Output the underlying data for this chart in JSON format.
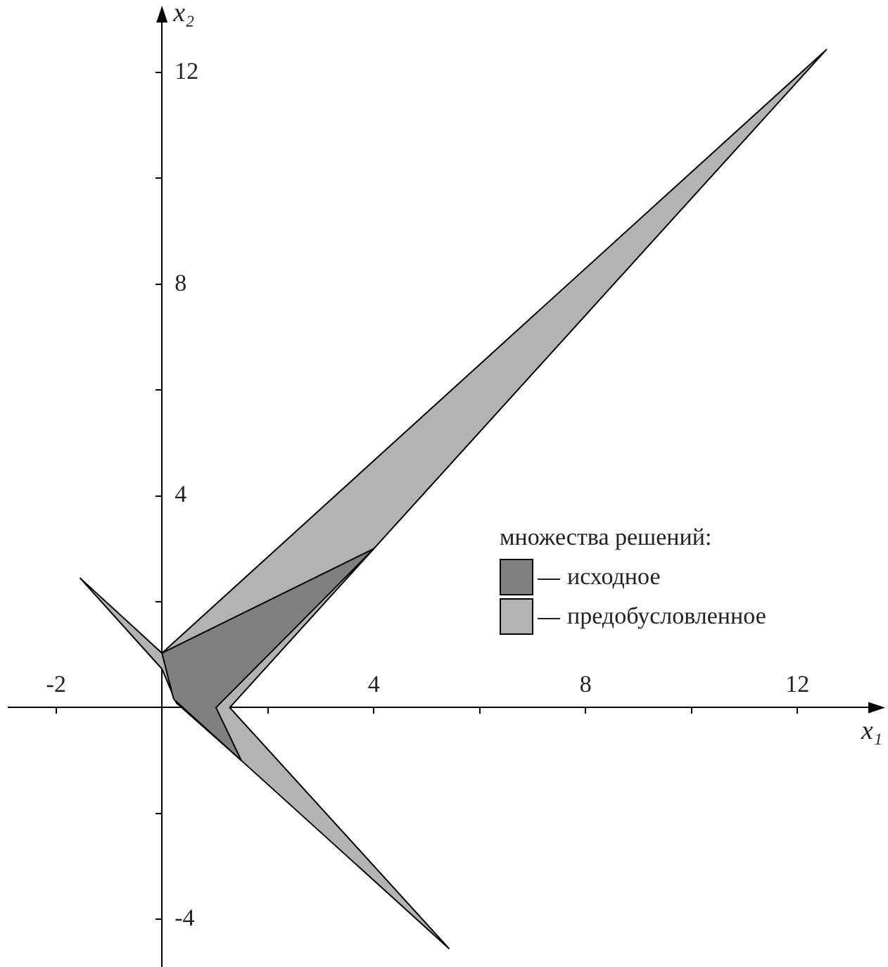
{
  "chart_data": {
    "type": "area",
    "xlabel": "x₁",
    "ylabel": "x₂",
    "legend_title": "множества решений:",
    "legend": "right",
    "grid": false,
    "xlim": [
      -2.9,
      13.5
    ],
    "ylim": [
      -4.9,
      13.1
    ],
    "xticks": [
      -2,
      {
        "value": 2,
        "label": null
      },
      4,
      {
        "value": 6,
        "label": null
      },
      8,
      {
        "value": 10,
        "label": null
      },
      12
    ],
    "yticks": [
      -4,
      {
        "value": -2,
        "label": null
      },
      {
        "value": 2,
        "label": null
      },
      4,
      {
        "value": 6,
        "label": null
      },
      8,
      {
        "value": 10,
        "label": null
      },
      12
    ],
    "series": [
      {
        "name": "предобусловленное",
        "color": "#b3b3b3",
        "x": [
          -1.55,
          0,
          12.55,
          1.28,
          5.42,
          1.5,
          0.27,
          0
        ],
        "values": [
          2.45,
          1.03,
          12.43,
          0,
          -4.55,
          -1,
          0.09,
          0.73
        ]
      },
      {
        "name": "исходное",
        "color": "#808080",
        "x": [
          0,
          4,
          1.02,
          1.5,
          0.22
        ],
        "values": [
          1.03,
          3,
          0,
          -1,
          0.16
        ]
      }
    ]
  }
}
